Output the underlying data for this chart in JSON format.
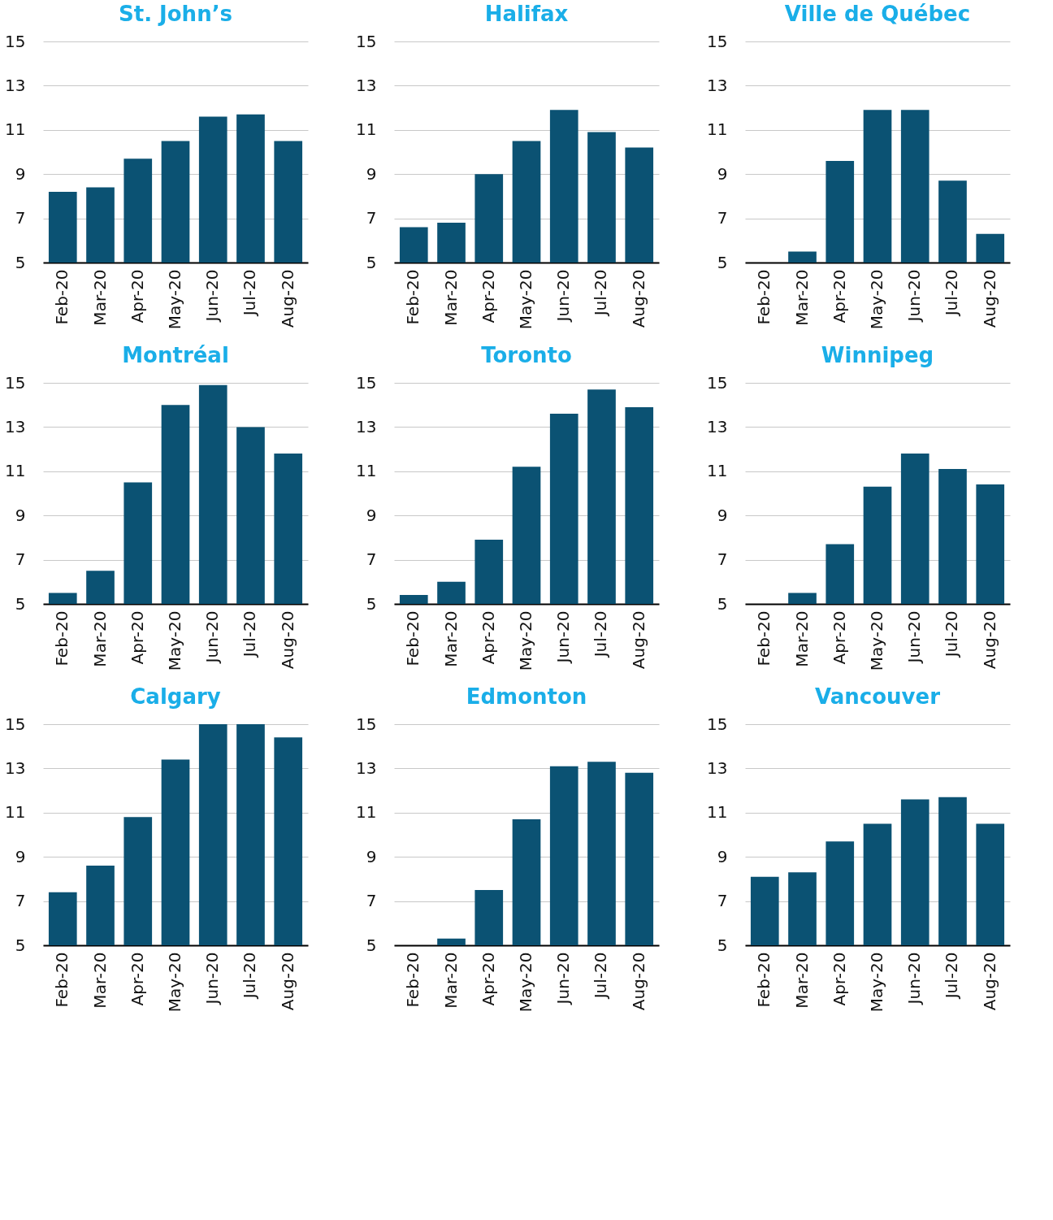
{
  "chart_data": [
    {
      "type": "bar",
      "title": "St. John’s",
      "categories": [
        "Feb-20",
        "Mar-20",
        "Apr-20",
        "May-20",
        "Jun-20",
        "Jul-20",
        "Aug-20"
      ],
      "values": [
        8.2,
        8.4,
        9.7,
        10.5,
        11.6,
        11.7,
        10.5
      ],
      "color": "#0b5273",
      "ylim": [
        5,
        15
      ],
      "yticks": [
        5,
        7,
        9,
        11,
        13,
        15
      ],
      "grid": "y"
    },
    {
      "type": "bar",
      "title": "Halifax",
      "categories": [
        "Feb-20",
        "Mar-20",
        "Apr-20",
        "May-20",
        "Jun-20",
        "Jul-20",
        "Aug-20"
      ],
      "values": [
        6.6,
        6.8,
        9.0,
        10.5,
        11.9,
        10.9,
        10.2
      ],
      "color": "#0b5273",
      "ylim": [
        5,
        15
      ],
      "yticks": [
        5,
        7,
        9,
        11,
        13,
        15
      ],
      "grid": "y"
    },
    {
      "type": "bar",
      "title": "Ville de Québec",
      "categories": [
        "Feb-20",
        "Mar-20",
        "Apr-20",
        "May-20",
        "Jun-20",
        "Jul-20",
        "Aug-20"
      ],
      "values": [
        5.0,
        5.5,
        9.6,
        11.9,
        11.9,
        8.7,
        6.3
      ],
      "color": "#0b5273",
      "ylim": [
        5,
        15
      ],
      "yticks": [
        5,
        7,
        9,
        11,
        13,
        15
      ],
      "grid": "y"
    },
    {
      "type": "bar",
      "title": "Montréal",
      "categories": [
        "Feb-20",
        "Mar-20",
        "Apr-20",
        "May-20",
        "Jun-20",
        "Jul-20",
        "Aug-20"
      ],
      "values": [
        5.5,
        6.5,
        10.5,
        14.0,
        14.9,
        13.0,
        11.8
      ],
      "color": "#0b5273",
      "ylim": [
        5,
        15
      ],
      "yticks": [
        5,
        7,
        9,
        11,
        13,
        15
      ],
      "grid": "y"
    },
    {
      "type": "bar",
      "title": "Toronto",
      "categories": [
        "Feb-20",
        "Mar-20",
        "Apr-20",
        "May-20",
        "Jun-20",
        "Jul-20",
        "Aug-20"
      ],
      "values": [
        5.4,
        6.0,
        7.9,
        11.2,
        13.6,
        14.7,
        13.9
      ],
      "color": "#0b5273",
      "ylim": [
        5,
        15
      ],
      "yticks": [
        5,
        7,
        9,
        11,
        13,
        15
      ],
      "grid": "y"
    },
    {
      "type": "bar",
      "title": "Winnipeg",
      "categories": [
        "Feb-20",
        "Mar-20",
        "Apr-20",
        "May-20",
        "Jun-20",
        "Jul-20",
        "Aug-20"
      ],
      "values": [
        5.0,
        5.5,
        7.7,
        10.3,
        11.8,
        11.1,
        10.4
      ],
      "color": "#0b5273",
      "ylim": [
        5,
        15
      ],
      "yticks": [
        5,
        7,
        9,
        11,
        13,
        15
      ],
      "grid": "y"
    },
    {
      "type": "bar",
      "title": "Calgary",
      "categories": [
        "Feb-20",
        "Mar-20",
        "Apr-20",
        "May-20",
        "Jun-20",
        "Jul-20",
        "Aug-20"
      ],
      "values": [
        7.4,
        8.6,
        10.8,
        13.4,
        15.0,
        15.0,
        14.4
      ],
      "color": "#0b5273",
      "ylim": [
        5,
        15
      ],
      "yticks": [
        5,
        7,
        9,
        11,
        13,
        15
      ],
      "grid": "y"
    },
    {
      "type": "bar",
      "title": "Edmonton",
      "categories": [
        "Feb-20",
        "Mar-20",
        "Apr-20",
        "May-20",
        "Jun-20",
        "Jul-20",
        "Aug-20"
      ],
      "values": [
        5.0,
        5.3,
        7.5,
        10.7,
        13.1,
        13.3,
        12.8
      ],
      "color": "#0b5273",
      "ylim": [
        5,
        15
      ],
      "yticks": [
        5,
        7,
        9,
        11,
        13,
        15
      ],
      "grid": "y"
    },
    {
      "type": "bar",
      "title": "Vancouver",
      "categories": [
        "Feb-20",
        "Mar-20",
        "Apr-20",
        "May-20",
        "Jun-20",
        "Jul-20",
        "Aug-20"
      ],
      "values": [
        8.1,
        8.3,
        9.7,
        10.5,
        11.6,
        11.7,
        10.5
      ],
      "color": "#0b5273",
      "ylim": [
        5,
        15
      ],
      "yticks": [
        5,
        7,
        9,
        11,
        13,
        15
      ],
      "grid": "y"
    }
  ]
}
